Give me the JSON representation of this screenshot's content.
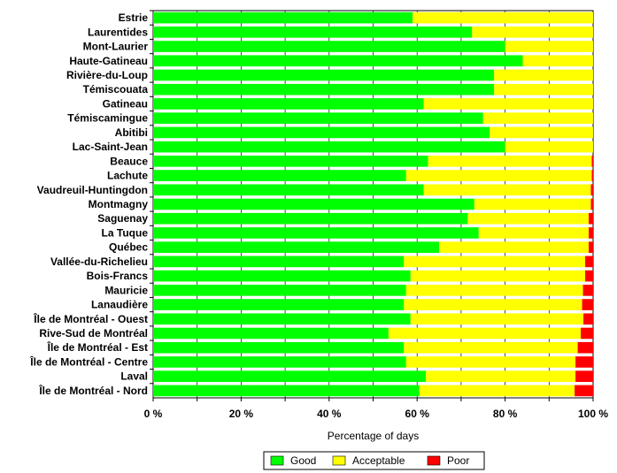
{
  "chart_data": {
    "type": "bar",
    "orientation": "horizontal",
    "stacked": true,
    "title": "",
    "xlabel": "Percentage of days",
    "ylabel": "",
    "xlim": [
      0,
      100
    ],
    "xticks": [
      0,
      20,
      40,
      60,
      80,
      100
    ],
    "xtick_labels": [
      "0 %",
      "20 %",
      "40 %",
      "60 %",
      "80 %",
      "100 %"
    ],
    "grid": "vertical",
    "legend_position": "bottom",
    "categories": [
      "Estrie",
      "Laurentides",
      "Mont-Laurier",
      "Haute-Gatineau",
      "Rivière-du-Loup",
      "Témiscouata",
      "Gatineau",
      "Témiscamingue",
      "Abitibi",
      "Lac-Saint-Jean",
      "Beauce",
      "Lachute",
      "Vaudreuil-Huntingdon",
      "Montmagny",
      "Saguenay",
      "La Tuque",
      "Québec",
      "Vallée-du-Richelieu",
      "Bois-Francs",
      "Mauricie",
      "Lanaudière",
      "Île de Montréal - Ouest",
      "Rive-Sud de Montréal",
      "Île de Montréal - Est",
      "Île de Montréal - Centre",
      "Laval",
      "Île de Montréal - Nord"
    ],
    "series": [
      {
        "name": "Good",
        "color": "#00ff00",
        "values": [
          59,
          72.5,
          80,
          84,
          77.5,
          77.5,
          61.5,
          75,
          76.5,
          80,
          62.5,
          57.5,
          61.5,
          73,
          71.5,
          74,
          65,
          57,
          58.5,
          57.5,
          57,
          58.5,
          53.5,
          57,
          57.5,
          62,
          60.5
        ]
      },
      {
        "name": "Acceptable",
        "color": "#ffff00",
        "values": [
          41,
          27.5,
          20,
          16,
          22.5,
          22.5,
          38.5,
          25,
          23.5,
          20,
          37.2,
          42.2,
          38,
          26.5,
          27.5,
          25,
          34,
          41.2,
          39.7,
          40.2,
          40.5,
          39.3,
          43.7,
          39.5,
          38.5,
          34,
          35.3
        ]
      },
      {
        "name": "Poor",
        "color": "#ff0000",
        "values": [
          0,
          0,
          0,
          0,
          0,
          0,
          0,
          0,
          0,
          0,
          0.3,
          0.3,
          0.5,
          0.5,
          1,
          1,
          1,
          1.8,
          1.8,
          2.3,
          2.5,
          2.2,
          2.8,
          3.5,
          4,
          4,
          4.2
        ]
      }
    ]
  }
}
